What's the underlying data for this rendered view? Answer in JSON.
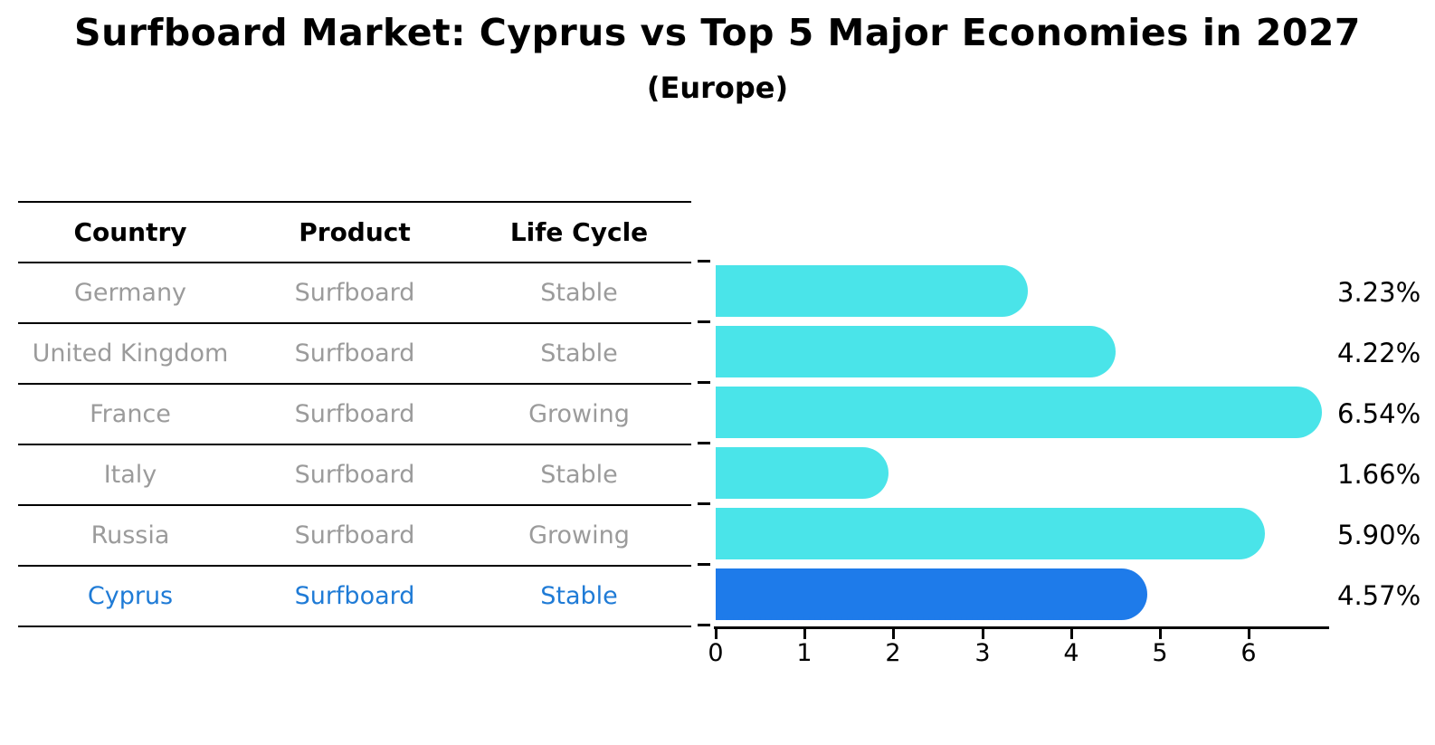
{
  "title": "Surfboard Market: Cyprus vs Top 5 Major Economies in 2027",
  "subtitle": "(Europe)",
  "table": {
    "headers": [
      "Country",
      "Product",
      "Life Cycle"
    ],
    "rows": [
      {
        "country": "Germany",
        "product": "Surfboard",
        "life_cycle": "Stable",
        "highlight": false
      },
      {
        "country": "United Kingdom",
        "product": "Surfboard",
        "life_cycle": "Stable",
        "highlight": false
      },
      {
        "country": "France",
        "product": "Surfboard",
        "life_cycle": "Growing",
        "highlight": false
      },
      {
        "country": "Italy",
        "product": "Surfboard",
        "life_cycle": "Stable",
        "highlight": false
      },
      {
        "country": "Russia",
        "product": "Surfboard",
        "life_cycle": "Growing",
        "highlight": false
      },
      {
        "country": "Cyprus",
        "product": "Surfboard",
        "life_cycle": "Stable",
        "highlight": true
      }
    ]
  },
  "chart_data": {
    "type": "bar",
    "orientation": "horizontal",
    "categories": [
      "Germany",
      "United Kingdom",
      "France",
      "Italy",
      "Russia",
      "Cyprus"
    ],
    "values": [
      3.23,
      4.22,
      6.54,
      1.66,
      5.9,
      4.57
    ],
    "value_labels": [
      "3.23%",
      "4.22%",
      "6.54%",
      "1.66%",
      "5.90%",
      "4.57%"
    ],
    "xticks": [
      0,
      1,
      2,
      3,
      4,
      5,
      6
    ],
    "xlim": [
      0,
      6.9
    ],
    "grid": false,
    "legend": "none",
    "bar_color": "#4AE4E9",
    "highlight_color": "#1E7BEA",
    "highlight_index": 5,
    "highlight_style": "dotted-outline"
  },
  "colors": {
    "title_text": "#000000",
    "table_header_text": "#000000",
    "table_row_text": "#9b9b9b",
    "highlight_row_text": "#1f7bd6",
    "axis": "#000000"
  }
}
